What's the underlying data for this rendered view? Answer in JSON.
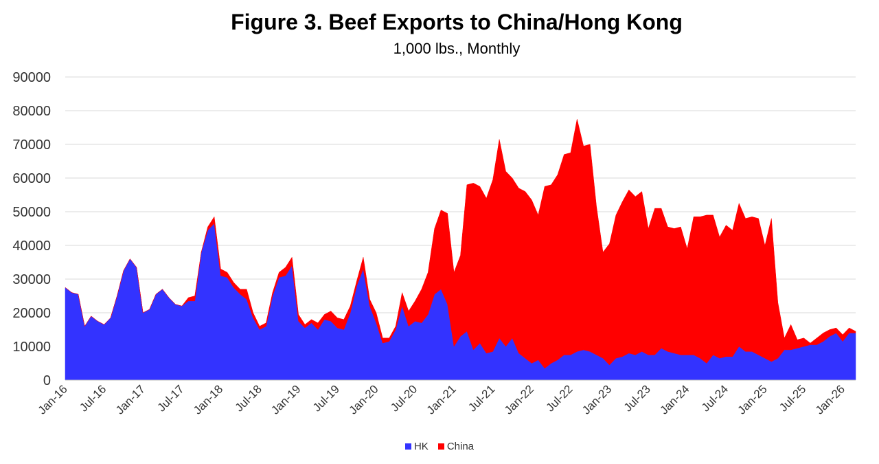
{
  "chart_data": {
    "type": "area",
    "stacked": true,
    "title": "Figure 3. Beef Exports to China/Hong Kong",
    "subtitle": "1,000 lbs., Monthly",
    "xlabel": "",
    "ylabel": "",
    "ylim": [
      0,
      90000
    ],
    "yticks": [
      "0",
      "10000",
      "20000",
      "30000",
      "40000",
      "50000",
      "60000",
      "70000",
      "80000",
      "90000"
    ],
    "grid": true,
    "legend_position": "bottom",
    "x_tick_labels": [
      "Jan-16",
      "Jul-16",
      "Jan-17",
      "Jul-17",
      "Jan-18",
      "Jul-18",
      "Jan-19",
      "Jul-19",
      "Jan-20",
      "Jul-20",
      "Jan-21",
      "Jul-21",
      "Jan-22",
      "Jul-22",
      "Jan-23",
      "Jul-23",
      "Jan-24",
      "Jul-24",
      "Jan-25",
      "Jul-25",
      "Jan-26"
    ],
    "x_start": "Jan-16",
    "series": [
      {
        "name": "HK",
        "color": "#3333ff",
        "values": [
          27500,
          26000,
          25500,
          16000,
          19000,
          17500,
          16500,
          18500,
          25000,
          32500,
          36000,
          33500,
          20000,
          21000,
          25500,
          27000,
          24500,
          22500,
          22000,
          23500,
          23500,
          38000,
          44500,
          46500,
          31000,
          30500,
          27500,
          25500,
          24000,
          18500,
          15000,
          16000,
          25000,
          30500,
          31000,
          34000,
          17500,
          15500,
          17000,
          15000,
          18000,
          17500,
          15500,
          15000,
          20000,
          28000,
          33000,
          22000,
          17000,
          11000,
          11500,
          15000,
          22000,
          16000,
          17500,
          17000,
          19500,
          25500,
          27000,
          22500,
          10000,
          13000,
          14500,
          9000,
          11000,
          8000,
          8500,
          12500,
          10000,
          12500,
          8000,
          6500,
          5000,
          6000,
          3500,
          5000,
          6000,
          7500,
          7500,
          8500,
          9000,
          8500,
          7500,
          6500,
          4500,
          6500,
          7000,
          8000,
          7500,
          8500,
          7500,
          7500,
          9500,
          8500,
          8000,
          7500,
          7500,
          7500,
          6500,
          5000,
          7500,
          6500,
          7000,
          7000,
          10000,
          8500,
          8500,
          7500,
          6500,
          5500,
          6500,
          9000,
          9000,
          9500,
          10000,
          10500,
          10500,
          11500,
          13000,
          14000,
          11500,
          14000,
          14000
        ]
      },
      {
        "name": "China",
        "color": "#ff0000",
        "values": [
          0,
          0,
          0,
          0,
          0,
          0,
          0,
          0,
          0,
          0,
          0,
          0,
          0,
          0,
          0,
          0,
          0,
          0,
          0,
          1000,
          1500,
          0,
          1000,
          2000,
          2000,
          1500,
          1500,
          1500,
          3000,
          1500,
          1000,
          1000,
          1000,
          1500,
          2500,
          2500,
          2000,
          1000,
          1000,
          2000,
          1500,
          3000,
          3000,
          3000,
          2000,
          1500,
          3500,
          2000,
          3000,
          1500,
          1000,
          1000,
          4000,
          4500,
          6000,
          10000,
          12500,
          19500,
          23500,
          27000,
          22000,
          24000,
          43500,
          49500,
          46500,
          46000,
          51000,
          59000,
          52000,
          47500,
          49000,
          49500,
          48500,
          43000,
          54000,
          53000,
          55000,
          59500,
          60000,
          69000,
          60500,
          61500,
          44000,
          31500,
          36000,
          42500,
          46000,
          48500,
          47000,
          47500,
          37500,
          43500,
          41500,
          37000,
          37000,
          38000,
          31500,
          41000,
          42000,
          44000,
          41500,
          36000,
          39000,
          37500,
          42500,
          39500,
          40000,
          40500,
          33500,
          42500,
          16500,
          3500,
          7500,
          2500,
          2500,
          500,
          2000,
          2500,
          2000,
          1500,
          2000,
          1500,
          500
        ]
      }
    ]
  }
}
